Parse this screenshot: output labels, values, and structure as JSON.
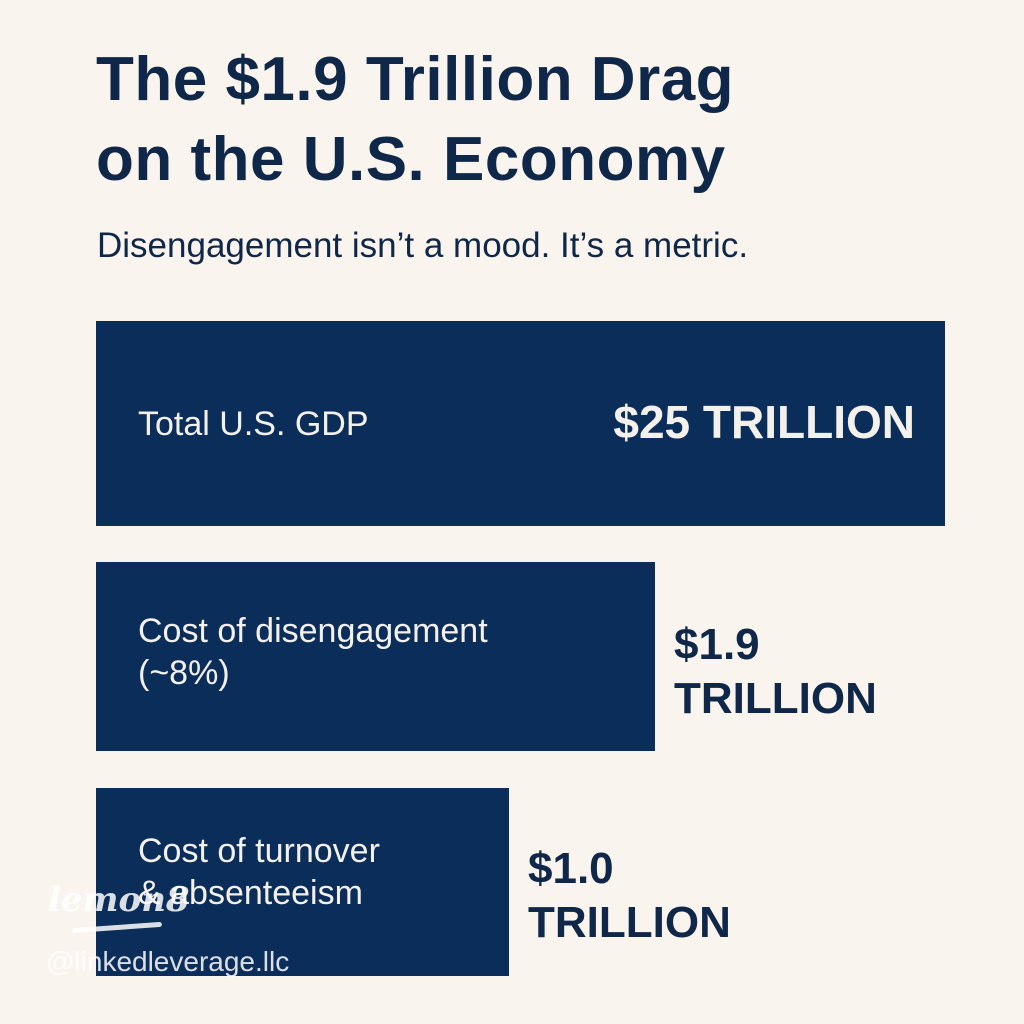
{
  "header": {
    "title_line1": "The $1.9 Trillion Drag",
    "title_line2": "on the U.S. Economy",
    "subtitle": "Disengagement isn’t a mood. It’s a metric."
  },
  "chart_data": {
    "type": "bar",
    "orientation": "horizontal",
    "title": "The $1.9 Trillion Drag on the U.S. Economy",
    "subtitle": "Disengagement isn’t a mood. It’s a metric.",
    "categories": [
      "Total U.S. GDP",
      "Cost of disengagement (~8%)",
      "Cost of turnover & absenteeism"
    ],
    "values": [
      25,
      1.9,
      1.0
    ],
    "units": "trillion USD",
    "bars": [
      {
        "label_line1": "Total U.S. GDP",
        "label_line2": "",
        "value_text": "$25 TRILLION",
        "value_line1": "",
        "value_line2": ""
      },
      {
        "label_line1": "Cost of disengagement",
        "label_line2": "(~8%)",
        "value_line1": "$1.9",
        "value_line2": "TRILLION"
      },
      {
        "label_line1": "Cost of turnover",
        "label_line2": "& absenteeism",
        "value_line1": "$1.0",
        "value_line2": "TRILLION"
      }
    ],
    "colors": {
      "bar": "#0b2d5a",
      "background": "#faf4ee",
      "text": "#0f2748"
    },
    "grid": false
  },
  "watermark": {
    "logo": "lemon8",
    "handle": "@linkedleverage.llc"
  }
}
